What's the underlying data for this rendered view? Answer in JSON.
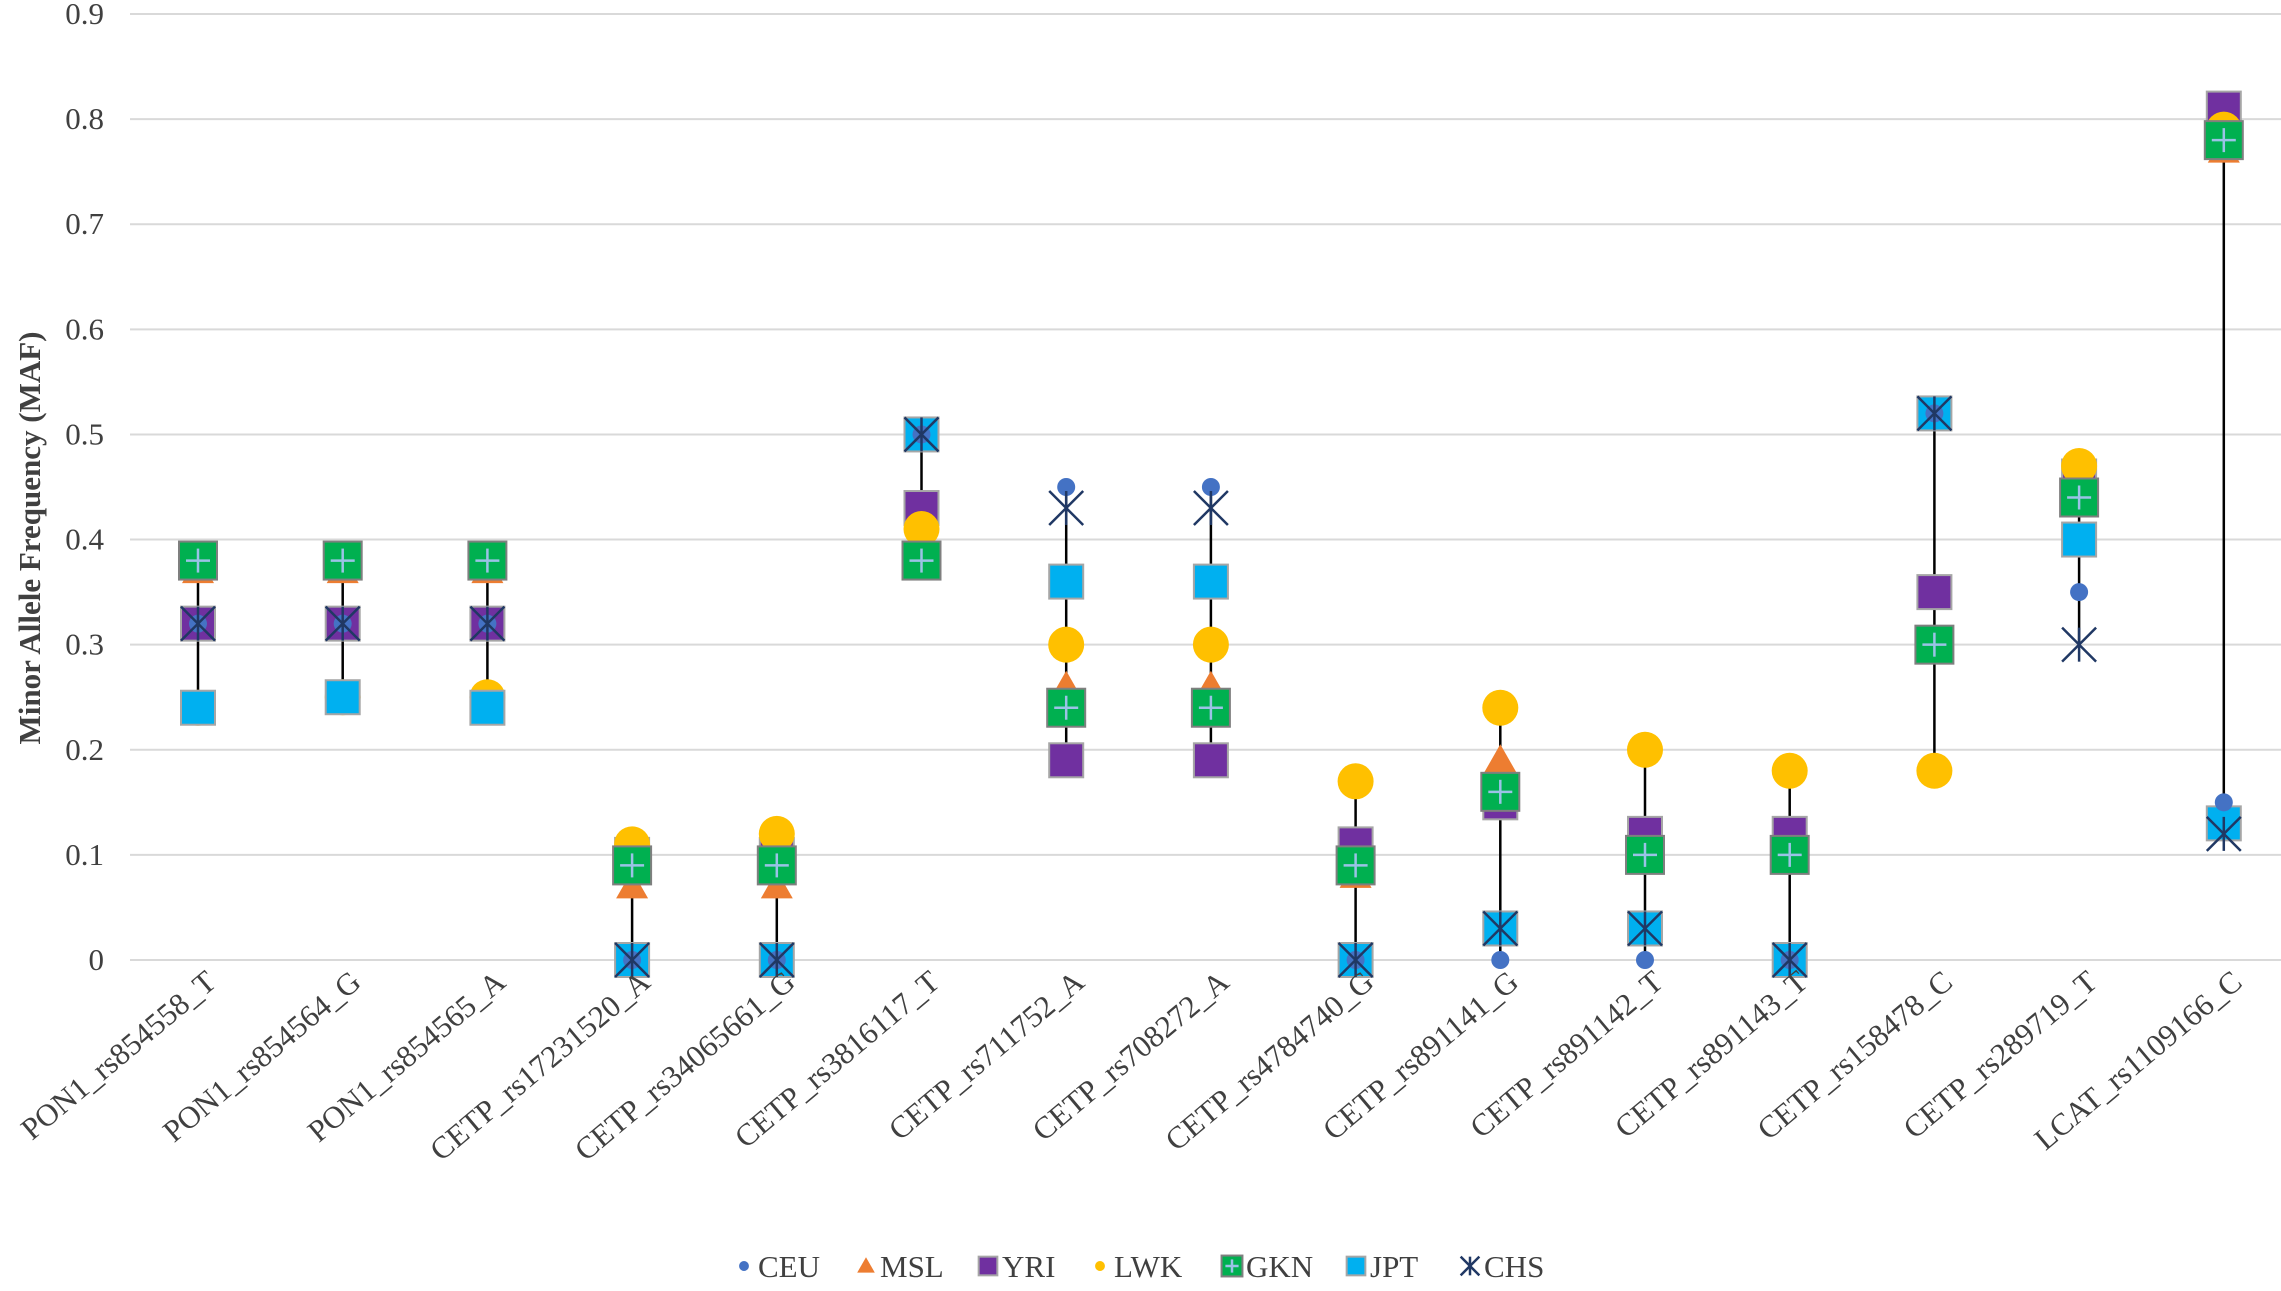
{
  "chart_data": {
    "type": "scatter",
    "title": "",
    "xlabel": "",
    "ylabel": "Minor Allele Frequency (MAF)",
    "ylim": [
      0,
      0.9
    ],
    "yticks": [
      "0",
      "0.1",
      "0.2",
      "0.3",
      "0.4",
      "0.5",
      "0.6",
      "0.7",
      "0.8",
      "0.9"
    ],
    "grid": true,
    "legend_position": "bottom",
    "categories": [
      "PON1_rs854558_T",
      "PON1_rs854564_G",
      "PON1_rs854565_A",
      "CETP_rs17231520_A",
      "CETP_rs34065661_G",
      "CETP_rs3816117_T",
      "CETP_rs711752_A",
      "CETP_rs708272_A",
      "CETP_rs4784740_G",
      "CETP_rs891141_G",
      "CETP_rs891142_T",
      "CETP_rs891143_T",
      "CETP_rs158478_C",
      "CETP_rs289719_T",
      "LCAT_rs1109166_C"
    ],
    "series": [
      {
        "name": "CEU",
        "marker": "circle",
        "color": "#4472c4",
        "values": [
          0.32,
          0.32,
          0.32,
          0.0,
          0.0,
          0.5,
          0.45,
          0.45,
          0.0,
          0.0,
          0.0,
          0.0,
          0.52,
          0.35,
          0.15
        ]
      },
      {
        "name": "MSL",
        "marker": "triangle",
        "color": "#ed7d31",
        "values": [
          0.37,
          0.37,
          0.37,
          0.07,
          0.07,
          0.42,
          0.26,
          0.26,
          0.08,
          0.19,
          0.1,
          0.1,
          0.3,
          0.45,
          0.77
        ]
      },
      {
        "name": "YRI",
        "marker": "square",
        "color": "#7030a0",
        "values": [
          0.32,
          0.32,
          0.32,
          0.1,
          0.1,
          0.43,
          0.19,
          0.19,
          0.11,
          0.15,
          0.12,
          0.12,
          0.35,
          0.46,
          0.81
        ]
      },
      {
        "name": "LWK",
        "marker": "circle",
        "color": "#ffc000",
        "values": [
          0.24,
          0.25,
          0.25,
          0.11,
          0.12,
          0.41,
          0.3,
          0.3,
          0.17,
          0.24,
          0.2,
          0.18,
          0.18,
          0.47,
          0.79
        ]
      },
      {
        "name": "GKN",
        "marker": "square-plus",
        "color": "#00b050",
        "values": [
          0.38,
          0.38,
          0.38,
          0.09,
          0.09,
          0.38,
          0.24,
          0.24,
          0.09,
          0.16,
          0.1,
          0.1,
          0.3,
          0.44,
          0.78
        ]
      },
      {
        "name": "JPT",
        "marker": "square",
        "color": "#00b0f0",
        "values": [
          0.24,
          0.25,
          0.24,
          0.0,
          0.0,
          0.5,
          0.36,
          0.36,
          0.0,
          0.03,
          0.03,
          0.0,
          0.52,
          0.4,
          0.13
        ]
      },
      {
        "name": "CHS",
        "marker": "star",
        "color": "#203864",
        "values": [
          0.32,
          0.32,
          0.32,
          0.0,
          0.0,
          0.5,
          0.43,
          0.43,
          0.0,
          0.03,
          0.03,
          0.0,
          0.52,
          0.3,
          0.12
        ]
      }
    ]
  }
}
